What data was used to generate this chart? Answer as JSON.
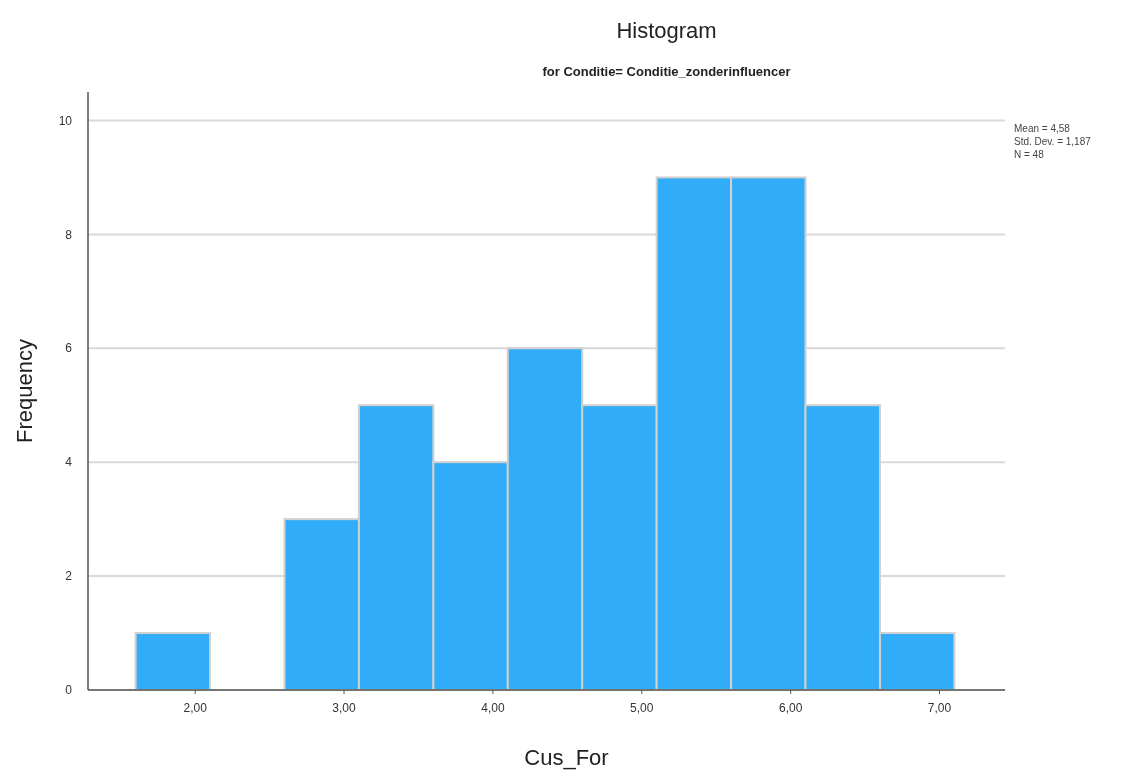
{
  "chart_data": {
    "type": "histogram",
    "title": "Histogram",
    "subtitle": "for Conditie= Conditie_zonderinfluencer",
    "xlabel": "Cus_For",
    "ylabel": "Frequency",
    "bins": [
      1.6,
      2.1,
      2.6,
      3.1,
      3.6,
      4.1,
      4.6,
      5.1,
      5.6,
      6.1,
      6.6,
      7.1
    ],
    "values": [
      1,
      0,
      3,
      5,
      4,
      6,
      5,
      9,
      9,
      5,
      1
    ],
    "color": "#30acf8",
    "xlim": [
      1.28,
      7.44
    ],
    "xticks": [
      {
        "value": 2,
        "label": "2,00"
      },
      {
        "value": 3,
        "label": "3,00"
      },
      {
        "value": 4,
        "label": "4,00"
      },
      {
        "value": 5,
        "label": "5,00"
      },
      {
        "value": 6,
        "label": "6,00"
      },
      {
        "value": 7,
        "label": "7,00"
      }
    ],
    "ylim": [
      0,
      10.5
    ],
    "yticks": [
      0,
      2,
      4,
      6,
      8,
      10
    ],
    "grid": "y",
    "annotations": [
      "Mean = 4,58",
      "Std. Dev. = 1,187",
      "N = 48"
    ]
  }
}
